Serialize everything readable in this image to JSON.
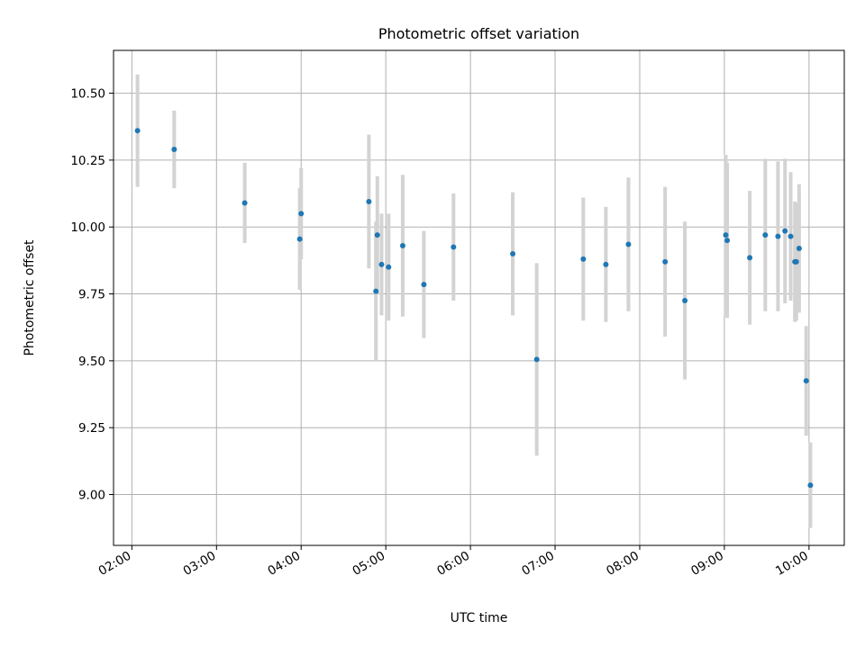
{
  "chart_data": {
    "type": "scatter",
    "title": "Photometric offset variation",
    "xlabel": "UTC time",
    "ylabel": "Photometric offset",
    "xlim": [
      "01:47",
      "10:25"
    ],
    "ylim": [
      8.81,
      10.66
    ],
    "grid": true,
    "xticks": [
      "02:00",
      "03:00",
      "04:00",
      "05:00",
      "06:00",
      "07:00",
      "08:00",
      "09:00",
      "10:00"
    ],
    "yticks": [
      "9.00",
      "9.25",
      "9.50",
      "9.75",
      "10.00",
      "10.25",
      "10.50"
    ],
    "marker_color": "#1f77b4",
    "errorbar_color": "#d3d3d3",
    "points": [
      {
        "x": "02:04",
        "y": 10.36,
        "err": 0.21
      },
      {
        "x": "02:30",
        "y": 10.29,
        "err": 0.145
      },
      {
        "x": "03:20",
        "y": 10.09,
        "err": 0.15
      },
      {
        "x": "03:59",
        "y": 9.955,
        "err": 0.19
      },
      {
        "x": "04:00",
        "y": 10.05,
        "err": 0.17
      },
      {
        "x": "04:48",
        "y": 10.095,
        "err": 0.25
      },
      {
        "x": "04:53",
        "y": 9.76,
        "err": 0.26
      },
      {
        "x": "04:54",
        "y": 9.97,
        "err": 0.22
      },
      {
        "x": "04:57",
        "y": 9.86,
        "err": 0.19
      },
      {
        "x": "05:02",
        "y": 9.85,
        "err": 0.2
      },
      {
        "x": "05:12",
        "y": 9.93,
        "err": 0.265
      },
      {
        "x": "05:27",
        "y": 9.785,
        "err": 0.2
      },
      {
        "x": "05:48",
        "y": 9.925,
        "err": 0.2
      },
      {
        "x": "06:30",
        "y": 9.9,
        "err": 0.23
      },
      {
        "x": "06:47",
        "y": 9.505,
        "err": 0.36
      },
      {
        "x": "07:20",
        "y": 9.88,
        "err": 0.23
      },
      {
        "x": "07:36",
        "y": 9.86,
        "err": 0.215
      },
      {
        "x": "07:52",
        "y": 9.935,
        "err": 0.25
      },
      {
        "x": "08:18",
        "y": 9.87,
        "err": 0.28
      },
      {
        "x": "08:32",
        "y": 9.725,
        "err": 0.295
      },
      {
        "x": "09:01",
        "y": 9.97,
        "err": 0.3
      },
      {
        "x": "09:02",
        "y": 9.95,
        "err": 0.29
      },
      {
        "x": "09:18",
        "y": 9.885,
        "err": 0.25
      },
      {
        "x": "09:29",
        "y": 9.97,
        "err": 0.285
      },
      {
        "x": "09:38",
        "y": 9.965,
        "err": 0.28
      },
      {
        "x": "09:43",
        "y": 9.985,
        "err": 0.27
      },
      {
        "x": "09:47",
        "y": 9.965,
        "err": 0.24
      },
      {
        "x": "09:50",
        "y": 9.87,
        "err": 0.225
      },
      {
        "x": "09:51",
        "y": 9.87,
        "err": 0.22
      },
      {
        "x": "09:53",
        "y": 9.92,
        "err": 0.24
      },
      {
        "x": "09:58",
        "y": 9.425,
        "err": 0.205
      },
      {
        "x": "10:01",
        "y": 9.035,
        "err": 0.16
      }
    ]
  }
}
